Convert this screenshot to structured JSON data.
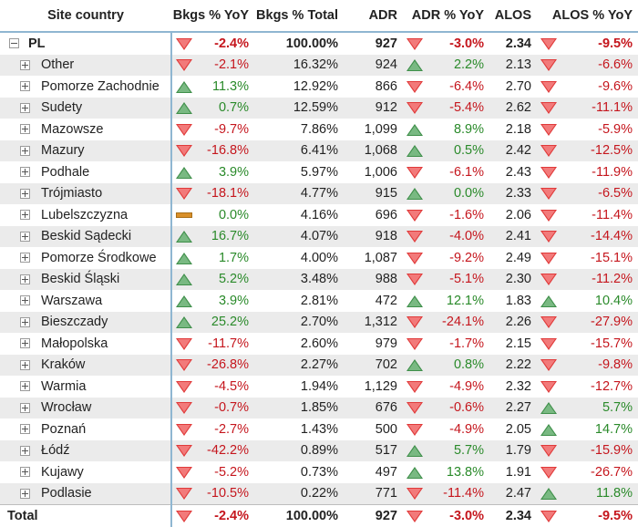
{
  "colors": {
    "negative": "#c5161d",
    "positive": "#2a8a2a",
    "down_arrow": "#e03a3a",
    "up_arrow": "#3f8f4a",
    "flat": "#d9902a",
    "divider": "#8fb6d1",
    "stripe": "#ebebeb"
  },
  "columns": [
    "Site country",
    "Bkgs % YoY",
    "Bkgs % Total",
    "ADR",
    "ADR % YoY",
    "ALOS",
    "ALOS % YoY"
  ],
  "rows": [
    {
      "name": "PL",
      "level": 0,
      "expander": "minus",
      "bkgs_yoy": "-2.4%",
      "bkgs_dir": "down",
      "bkgs_total": "100.00%",
      "adr": "927",
      "adr_yoy": "-3.0%",
      "adr_dir": "down",
      "alos": "2.34",
      "alos_yoy": "-9.5%",
      "alos_dir": "down"
    },
    {
      "name": "Other",
      "level": 1,
      "expander": "plus",
      "bkgs_yoy": "-2.1%",
      "bkgs_dir": "down",
      "bkgs_total": "16.32%",
      "adr": "924",
      "adr_yoy": "2.2%",
      "adr_dir": "up",
      "alos": "2.13",
      "alos_yoy": "-6.6%",
      "alos_dir": "down"
    },
    {
      "name": "Pomorze Zachodnie",
      "level": 1,
      "expander": "plus",
      "bkgs_yoy": "11.3%",
      "bkgs_dir": "up",
      "bkgs_total": "12.92%",
      "adr": "866",
      "adr_yoy": "-6.4%",
      "adr_dir": "down",
      "alos": "2.70",
      "alos_yoy": "-9.6%",
      "alos_dir": "down"
    },
    {
      "name": "Sudety",
      "level": 1,
      "expander": "plus",
      "bkgs_yoy": "0.7%",
      "bkgs_dir": "up",
      "bkgs_total": "12.59%",
      "adr": "912",
      "adr_yoy": "-5.4%",
      "adr_dir": "down",
      "alos": "2.62",
      "alos_yoy": "-11.1%",
      "alos_dir": "down"
    },
    {
      "name": "Mazowsze",
      "level": 1,
      "expander": "plus",
      "bkgs_yoy": "-9.7%",
      "bkgs_dir": "down",
      "bkgs_total": "7.86%",
      "adr": "1,099",
      "adr_yoy": "8.9%",
      "adr_dir": "up",
      "alos": "2.18",
      "alos_yoy": "-5.9%",
      "alos_dir": "down"
    },
    {
      "name": "Mazury",
      "level": 1,
      "expander": "plus",
      "bkgs_yoy": "-16.8%",
      "bkgs_dir": "down",
      "bkgs_total": "6.41%",
      "adr": "1,068",
      "adr_yoy": "0.5%",
      "adr_dir": "up",
      "alos": "2.42",
      "alos_yoy": "-12.5%",
      "alos_dir": "down"
    },
    {
      "name": "Podhale",
      "level": 1,
      "expander": "plus",
      "bkgs_yoy": "3.9%",
      "bkgs_dir": "up",
      "bkgs_total": "5.97%",
      "adr": "1,006",
      "adr_yoy": "-6.1%",
      "adr_dir": "down",
      "alos": "2.43",
      "alos_yoy": "-11.9%",
      "alos_dir": "down"
    },
    {
      "name": "Trójmiasto",
      "level": 1,
      "expander": "plus",
      "bkgs_yoy": "-18.1%",
      "bkgs_dir": "down",
      "bkgs_total": "4.77%",
      "adr": "915",
      "adr_yoy": "0.0%",
      "adr_dir": "up",
      "alos": "2.33",
      "alos_yoy": "-6.5%",
      "alos_dir": "down"
    },
    {
      "name": "Lubelszczyzna",
      "level": 1,
      "expander": "plus",
      "bkgs_yoy": "0.0%",
      "bkgs_dir": "flat",
      "bkgs_total": "4.16%",
      "adr": "696",
      "adr_yoy": "-1.6%",
      "adr_dir": "down",
      "alos": "2.06",
      "alos_yoy": "-11.4%",
      "alos_dir": "down"
    },
    {
      "name": "Beskid Sądecki",
      "level": 1,
      "expander": "plus",
      "bkgs_yoy": "16.7%",
      "bkgs_dir": "up",
      "bkgs_total": "4.07%",
      "adr": "918",
      "adr_yoy": "-4.0%",
      "adr_dir": "down",
      "alos": "2.41",
      "alos_yoy": "-14.4%",
      "alos_dir": "down"
    },
    {
      "name": "Pomorze Środkowe",
      "level": 1,
      "expander": "plus",
      "bkgs_yoy": "1.7%",
      "bkgs_dir": "up",
      "bkgs_total": "4.00%",
      "adr": "1,087",
      "adr_yoy": "-9.2%",
      "adr_dir": "down",
      "alos": "2.49",
      "alos_yoy": "-15.1%",
      "alos_dir": "down"
    },
    {
      "name": "Beskid Śląski",
      "level": 1,
      "expander": "plus",
      "bkgs_yoy": "5.2%",
      "bkgs_dir": "up",
      "bkgs_total": "3.48%",
      "adr": "988",
      "adr_yoy": "-5.1%",
      "adr_dir": "down",
      "alos": "2.30",
      "alos_yoy": "-11.2%",
      "alos_dir": "down"
    },
    {
      "name": "Warszawa",
      "level": 1,
      "expander": "plus",
      "bkgs_yoy": "3.9%",
      "bkgs_dir": "up",
      "bkgs_total": "2.81%",
      "adr": "472",
      "adr_yoy": "12.1%",
      "adr_dir": "up",
      "alos": "1.83",
      "alos_yoy": "10.4%",
      "alos_dir": "up"
    },
    {
      "name": "Bieszczady",
      "level": 1,
      "expander": "plus",
      "bkgs_yoy": "25.2%",
      "bkgs_dir": "up",
      "bkgs_total": "2.70%",
      "adr": "1,312",
      "adr_yoy": "-24.1%",
      "adr_dir": "down",
      "alos": "2.26",
      "alos_yoy": "-27.9%",
      "alos_dir": "down"
    },
    {
      "name": "Małopolska",
      "level": 1,
      "expander": "plus",
      "bkgs_yoy": "-11.7%",
      "bkgs_dir": "down",
      "bkgs_total": "2.60%",
      "adr": "979",
      "adr_yoy": "-1.7%",
      "adr_dir": "down",
      "alos": "2.15",
      "alos_yoy": "-15.7%",
      "alos_dir": "down"
    },
    {
      "name": "Kraków",
      "level": 1,
      "expander": "plus",
      "bkgs_yoy": "-26.8%",
      "bkgs_dir": "down",
      "bkgs_total": "2.27%",
      "adr": "702",
      "adr_yoy": "0.8%",
      "adr_dir": "up",
      "alos": "2.22",
      "alos_yoy": "-9.8%",
      "alos_dir": "down"
    },
    {
      "name": "Warmia",
      "level": 1,
      "expander": "plus",
      "bkgs_yoy": "-4.5%",
      "bkgs_dir": "down",
      "bkgs_total": "1.94%",
      "adr": "1,129",
      "adr_yoy": "-4.9%",
      "adr_dir": "down",
      "alos": "2.32",
      "alos_yoy": "-12.7%",
      "alos_dir": "down"
    },
    {
      "name": "Wrocław",
      "level": 1,
      "expander": "plus",
      "bkgs_yoy": "-0.7%",
      "bkgs_dir": "down",
      "bkgs_total": "1.85%",
      "adr": "676",
      "adr_yoy": "-0.6%",
      "adr_dir": "down",
      "alos": "2.27",
      "alos_yoy": "5.7%",
      "alos_dir": "up"
    },
    {
      "name": "Poznań",
      "level": 1,
      "expander": "plus",
      "bkgs_yoy": "-2.7%",
      "bkgs_dir": "down",
      "bkgs_total": "1.43%",
      "adr": "500",
      "adr_yoy": "-4.9%",
      "adr_dir": "down",
      "alos": "2.05",
      "alos_yoy": "14.7%",
      "alos_dir": "up"
    },
    {
      "name": "Łódź",
      "level": 1,
      "expander": "plus",
      "bkgs_yoy": "-42.2%",
      "bkgs_dir": "down",
      "bkgs_total": "0.89%",
      "adr": "517",
      "adr_yoy": "5.7%",
      "adr_dir": "up",
      "alos": "1.79",
      "alos_yoy": "-15.9%",
      "alos_dir": "down"
    },
    {
      "name": "Kujawy",
      "level": 1,
      "expander": "plus",
      "bkgs_yoy": "-5.2%",
      "bkgs_dir": "down",
      "bkgs_total": "0.73%",
      "adr": "497",
      "adr_yoy": "13.8%",
      "adr_dir": "up",
      "alos": "1.91",
      "alos_yoy": "-26.7%",
      "alos_dir": "down"
    },
    {
      "name": "Podlasie",
      "level": 1,
      "expander": "plus",
      "bkgs_yoy": "-10.5%",
      "bkgs_dir": "down",
      "bkgs_total": "0.22%",
      "adr": "771",
      "adr_yoy": "-11.4%",
      "adr_dir": "down",
      "alos": "2.47",
      "alos_yoy": "11.8%",
      "alos_dir": "up"
    }
  ],
  "total": {
    "name": "Total",
    "bkgs_yoy": "-2.4%",
    "bkgs_dir": "down",
    "bkgs_total": "100.00%",
    "adr": "927",
    "adr_yoy": "-3.0%",
    "adr_dir": "down",
    "alos": "2.34",
    "alos_yoy": "-9.5%",
    "alos_dir": "down"
  }
}
